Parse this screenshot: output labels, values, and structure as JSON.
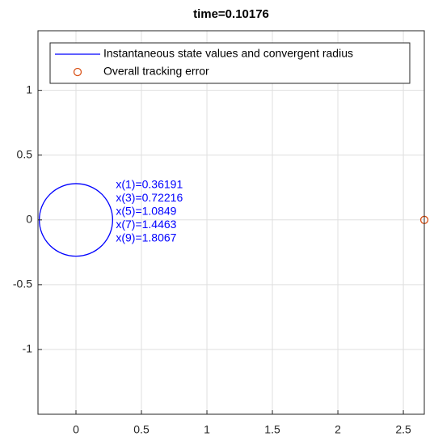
{
  "chart_data": {
    "type": "line",
    "title": "time=0.10176",
    "xlim": [
      -0.29,
      2.66
    ],
    "ylim": [
      -1.5,
      1.46
    ],
    "xticks": [
      0,
      0.5,
      1,
      1.5,
      2,
      2.5
    ],
    "yticks": [
      -1,
      -0.5,
      0,
      0.5,
      1
    ],
    "grid": true,
    "legend": "top",
    "series": [
      {
        "name": "Instantaneous state values and convergent radius",
        "color": "#0000ff",
        "center_x": 0,
        "center_y": 0,
        "radius": 0.28
      },
      {
        "name": "Overall tracking error",
        "color": "#d95319",
        "x": [
          2.66
        ],
        "y": [
          0
        ]
      }
    ],
    "annotations": [
      "x(1)=0.36191",
      "x(3)=0.72216",
      "x(5)=1.0849",
      "x(7)=1.4463",
      "x(9)=1.8067"
    ]
  }
}
